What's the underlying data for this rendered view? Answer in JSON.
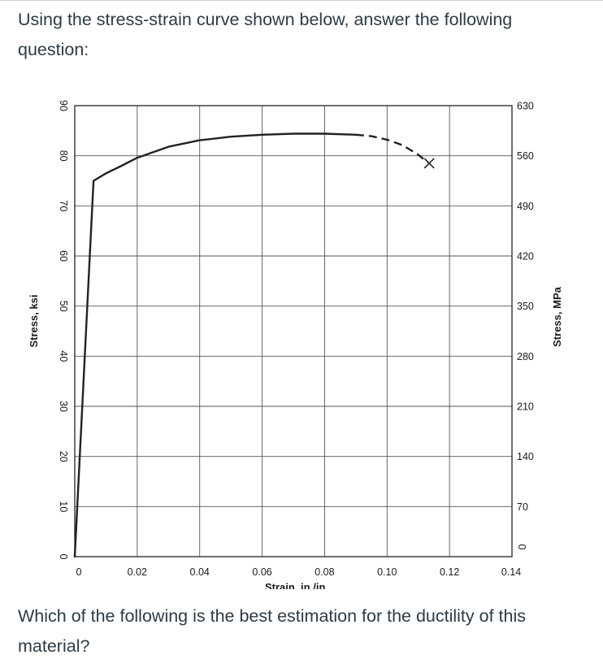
{
  "intro_text": "Using the stress-strain curve shown below, answer the following question:",
  "question_text": "Which of the following is the best estimation for the ductility of this material?",
  "chart_data": {
    "type": "line",
    "title": "",
    "xlabel": "Strain, in./in.",
    "ylabel_left": "Stress, ksi",
    "ylabel_right": "Stress, MPa",
    "xlim": [
      0,
      0.14
    ],
    "ylim_left": [
      0,
      90
    ],
    "ylim_right": [
      0,
      630
    ],
    "grid": true,
    "x_ticks": [
      "0",
      "0.02",
      "0.04",
      "0.06",
      "0.08",
      "0.10",
      "0.12",
      "0.14"
    ],
    "x_tick_values": [
      0,
      0.02,
      0.04,
      0.06,
      0.08,
      0.1,
      0.12,
      0.14
    ],
    "y_ticks_left": [
      "0",
      "10",
      "20",
      "30",
      "40",
      "50",
      "60",
      "70",
      "80",
      "90"
    ],
    "y_tick_values_left": [
      0,
      10,
      20,
      30,
      40,
      50,
      60,
      70,
      80,
      90
    ],
    "y_ticks_right": [
      "0",
      "70",
      "140",
      "210",
      "280",
      "350",
      "420",
      "490",
      "560",
      "630"
    ],
    "series": [
      {
        "style": "solid",
        "x": [
          0,
          0.006,
          0.01,
          0.015,
          0.02,
          0.03,
          0.04,
          0.05,
          0.06,
          0.07,
          0.08,
          0.09
        ],
        "y": [
          0,
          75,
          76.5,
          78,
          79.6,
          81.8,
          83.1,
          83.8,
          84.2,
          84.4,
          84.4,
          84.2
        ]
      },
      {
        "style": "dashed",
        "x": [
          0.09,
          0.095,
          0.1,
          0.105,
          0.11,
          0.113
        ],
        "y": [
          84.2,
          83.9,
          83.2,
          82.1,
          80.2,
          78.7
        ]
      }
    ],
    "fracture_point": {
      "x": 0.1135,
      "y": 78.5,
      "marker": "x"
    }
  }
}
